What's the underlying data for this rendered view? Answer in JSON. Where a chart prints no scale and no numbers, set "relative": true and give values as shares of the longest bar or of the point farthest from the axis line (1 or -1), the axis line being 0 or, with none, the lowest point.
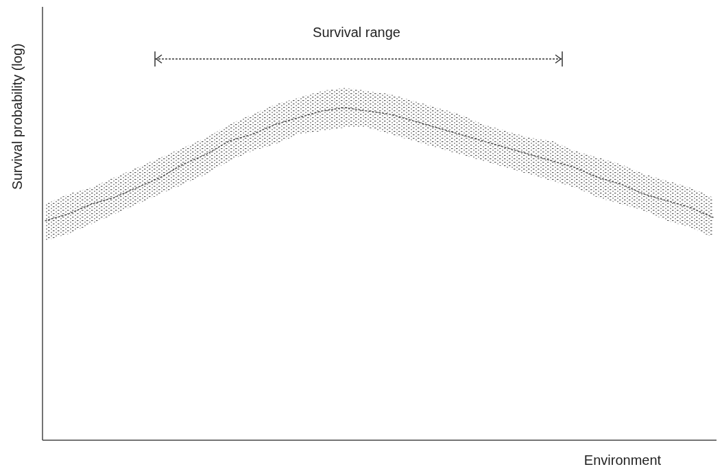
{
  "chart_data": {
    "type": "line",
    "relative": true,
    "xlabel": "Environment",
    "ylabel": "Survival probability (log)",
    "annotations": [
      "Survival range"
    ],
    "line_style": "dotted",
    "categories": [
      null,
      null,
      null,
      null,
      null,
      null,
      null,
      null,
      null,
      null,
      null,
      null,
      null,
      null,
      null,
      null,
      null,
      null,
      null,
      null,
      null,
      null,
      null,
      null,
      null,
      null,
      null,
      null,
      null,
      null
    ],
    "series": [
      {
        "color": "#555555",
        "values": [
          0.66,
          0.68,
          0.71,
          0.73,
          0.76,
          0.79,
          0.83,
          0.86,
          0.9,
          0.92,
          0.95,
          0.97,
          0.99,
          1,
          0.99,
          0.98,
          0.96,
          0.94,
          0.92,
          0.9,
          0.88,
          0.86,
          0.84,
          0.82,
          0.79,
          0.77,
          0.74,
          0.72,
          0.7,
          0.67
        ],
        "upper": [
          0.71,
          0.74,
          0.76,
          0.79,
          0.82,
          0.85,
          0.88,
          0.91,
          0.95,
          0.98,
          1.01,
          1.03,
          1.05,
          1.06,
          1.05,
          1.04,
          1.02,
          1.0,
          0.98,
          0.95,
          0.93,
          0.91,
          0.9,
          0.87,
          0.85,
          0.83,
          0.8,
          0.78,
          0.76,
          0.73
        ],
        "lower": [
          0.6,
          0.62,
          0.65,
          0.68,
          0.71,
          0.74,
          0.77,
          0.8,
          0.84,
          0.87,
          0.89,
          0.92,
          0.93,
          0.94,
          0.94,
          0.92,
          0.9,
          0.88,
          0.86,
          0.84,
          0.82,
          0.8,
          0.78,
          0.76,
          0.73,
          0.71,
          0.69,
          0.66,
          0.64,
          0.61
        ]
      }
    ]
  }
}
